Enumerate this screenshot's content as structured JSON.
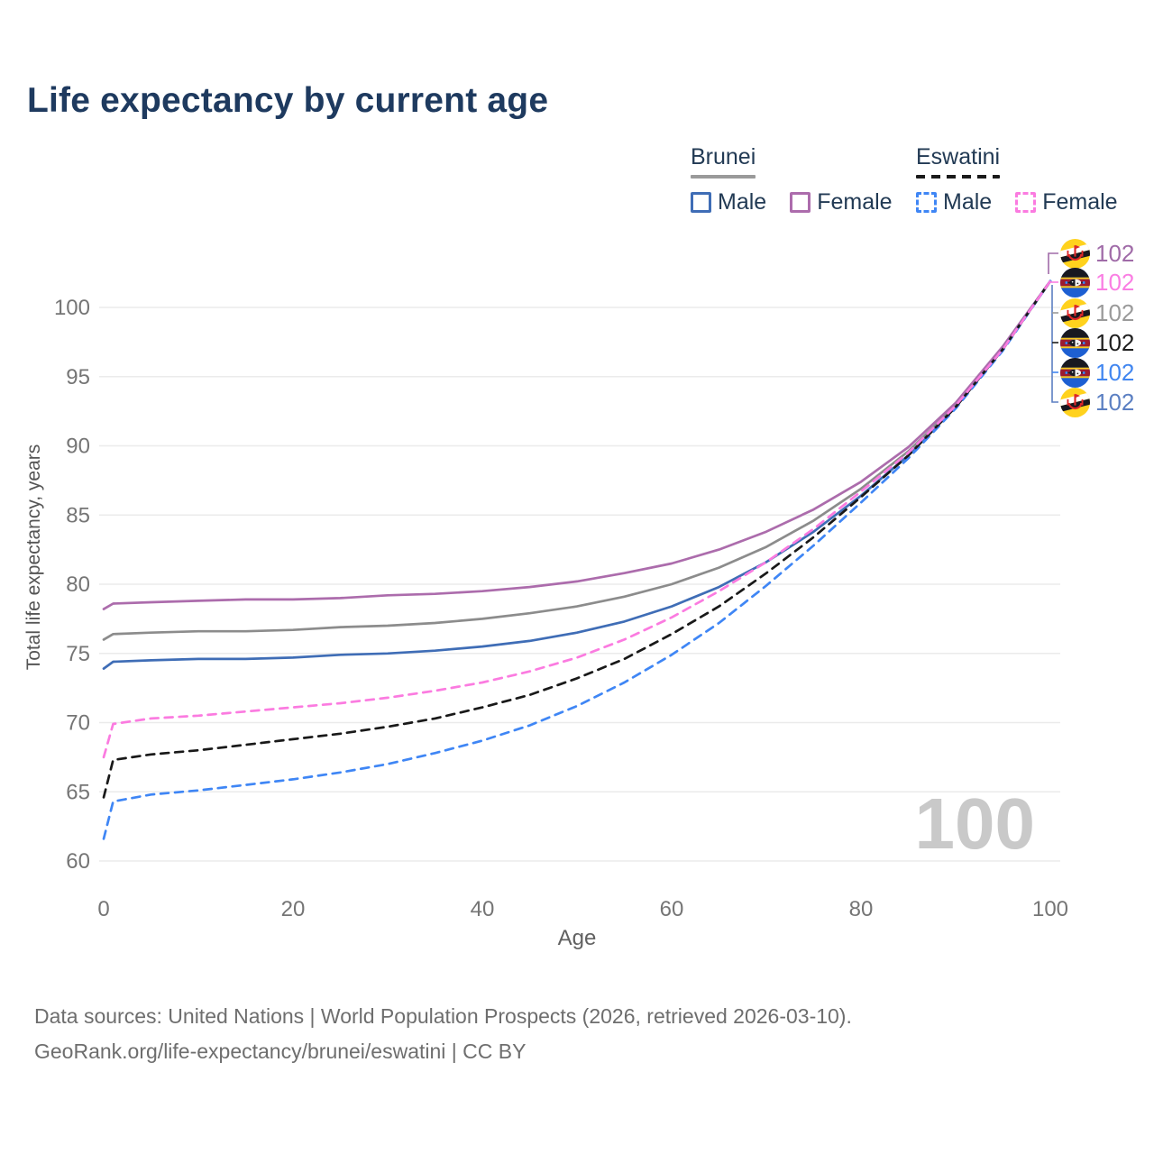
{
  "title": "Life expectancy by current age",
  "legend": {
    "groups": [
      {
        "label": "Brunei",
        "line_style": "solid",
        "line_color": "#9a9a9a",
        "items": [
          {
            "label": "Male",
            "color": "#3f6db6",
            "style": "solid"
          },
          {
            "label": "Female",
            "color": "#ac6cac",
            "style": "solid"
          }
        ]
      },
      {
        "label": "Eswatini",
        "line_style": "dashed",
        "line_color": "#1a1a1a",
        "items": [
          {
            "label": "Male",
            "color": "#3f86f5",
            "style": "dashed"
          },
          {
            "label": "Female",
            "color": "#fb7be0",
            "style": "dashed"
          }
        ]
      }
    ]
  },
  "watermark": "100",
  "footer": {
    "line1": "Data sources: United Nations | World Population Prospects (2026, retrieved 2026-03-10).",
    "line2": "GeoRank.org/life-expectancy/brunei/eswatini | CC BY"
  },
  "value_labels": [
    {
      "flag": "brunei",
      "value": "102",
      "color": "#a06ba8"
    },
    {
      "flag": "eswatini",
      "value": "102",
      "color": "#fa7ee3"
    },
    {
      "flag": "brunei",
      "value": "102",
      "color": "#9a9a9a"
    },
    {
      "flag": "eswatini",
      "value": "102",
      "color": "#1e1e1e"
    },
    {
      "flag": "eswatini",
      "value": "102",
      "color": "#4186f0"
    },
    {
      "flag": "brunei",
      "value": "102",
      "color": "#5b7fc2"
    }
  ],
  "chart_data": {
    "type": "line",
    "title": "Life expectancy by current age",
    "xlabel": "Age",
    "ylabel": "Total life expectancy, years",
    "xlim": [
      0,
      100
    ],
    "ylim": [
      58.5,
      103.5
    ],
    "grid": "horizontal",
    "legend_position": "top-right",
    "x_ticks": [
      0,
      20,
      40,
      60,
      80,
      100
    ],
    "y_ticks": [
      60,
      65,
      70,
      75,
      80,
      85,
      90,
      95,
      100
    ],
    "x": [
      0,
      1,
      5,
      10,
      15,
      20,
      25,
      30,
      35,
      40,
      45,
      50,
      55,
      60,
      65,
      70,
      75,
      80,
      85,
      90,
      95,
      100
    ],
    "series": [
      {
        "name": "Brunei Female",
        "country": "Brunei",
        "group": "Female",
        "color": "#ac6cac",
        "dash": "solid",
        "end_label": "102",
        "values": [
          78.2,
          78.6,
          78.7,
          78.8,
          78.9,
          78.9,
          79.0,
          79.2,
          79.3,
          79.5,
          79.8,
          80.2,
          80.8,
          81.5,
          82.5,
          83.8,
          85.4,
          87.4,
          89.9,
          93.1,
          97.2,
          101.9
        ]
      },
      {
        "name": "Brunei All",
        "country": "Brunei",
        "group": "All",
        "color": "#8c8c8c",
        "dash": "solid",
        "end_label": "102",
        "values": [
          76.0,
          76.4,
          76.5,
          76.6,
          76.6,
          76.7,
          76.9,
          77.0,
          77.2,
          77.5,
          77.9,
          78.4,
          79.1,
          80.0,
          81.2,
          82.7,
          84.6,
          86.9,
          89.6,
          92.9,
          97.1,
          101.9
        ]
      },
      {
        "name": "Brunei Male",
        "country": "Brunei",
        "group": "Male",
        "color": "#3f6db6",
        "dash": "solid",
        "end_label": "102",
        "values": [
          73.9,
          74.4,
          74.5,
          74.6,
          74.6,
          74.7,
          74.9,
          75.0,
          75.2,
          75.5,
          75.9,
          76.5,
          77.3,
          78.4,
          79.8,
          81.6,
          83.8,
          86.4,
          89.3,
          92.8,
          97.0,
          101.9
        ]
      },
      {
        "name": "Eswatini Female",
        "country": "Eswatini",
        "group": "Female",
        "color": "#fb7be0",
        "dash": "dashed",
        "end_label": "102",
        "values": [
          67.5,
          69.9,
          70.3,
          70.5,
          70.8,
          71.1,
          71.4,
          71.8,
          72.3,
          72.9,
          73.7,
          74.7,
          76.0,
          77.6,
          79.5,
          81.6,
          84.0,
          86.7,
          89.5,
          92.9,
          97.0,
          101.9
        ]
      },
      {
        "name": "Eswatini All",
        "country": "Eswatini",
        "group": "All",
        "color": "#191919",
        "dash": "dashed",
        "end_label": "102",
        "values": [
          64.6,
          67.3,
          67.7,
          68.0,
          68.4,
          68.8,
          69.2,
          69.7,
          70.3,
          71.1,
          72.0,
          73.2,
          74.6,
          76.4,
          78.4,
          80.8,
          83.4,
          86.3,
          89.3,
          92.8,
          97.0,
          101.9
        ]
      },
      {
        "name": "Eswatini Male",
        "country": "Eswatini",
        "group": "Male",
        "color": "#3f86f5",
        "dash": "dashed",
        "end_label": "102",
        "values": [
          61.6,
          64.3,
          64.8,
          65.1,
          65.5,
          65.9,
          66.4,
          67.0,
          67.8,
          68.7,
          69.8,
          71.2,
          72.9,
          74.9,
          77.2,
          79.9,
          82.8,
          85.9,
          89.1,
          92.7,
          96.9,
          101.9
        ]
      }
    ]
  }
}
